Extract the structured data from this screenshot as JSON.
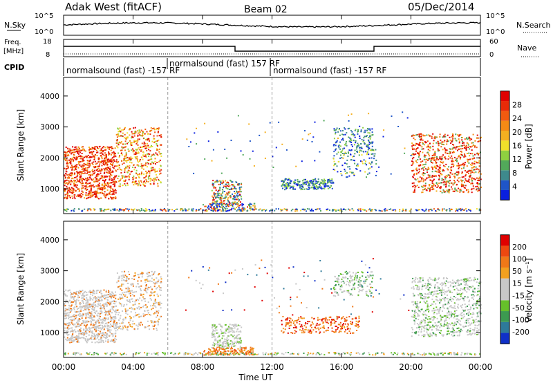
{
  "header": {
    "site": "Adak West (fitACF)",
    "beam": "Beam 02",
    "date": "05/Dec/2014"
  },
  "strips": {
    "nsky_label": "N.Sky",
    "nsky_ticks": [
      "10^5",
      "10^0"
    ],
    "nsearch_label": "N.Search",
    "nsearch_ticks": [
      "10^5",
      "10^0"
    ],
    "freq_label_1": "Freq.",
    "freq_label_2": "[MHz]",
    "freq_ticks": [
      "18",
      "8"
    ],
    "nave_label": "Nave",
    "nave_ticks": [
      "60",
      "0"
    ],
    "cpid_label": "CPID",
    "cpid_segments": [
      {
        "text": "normalsound (fast) -157 RF"
      },
      {
        "text": "normalsound (fast) 157 RF"
      },
      {
        "text": "normalsound (fast) -157 RF"
      }
    ]
  },
  "chart_data": [
    {
      "type": "heatmap",
      "name": "power",
      "ylabel": "Slant Range [km]",
      "ylim": [
        200,
        4600
      ],
      "yticks": [
        "1000",
        "2000",
        "3000",
        "4000"
      ],
      "xlim_hours": [
        0,
        24
      ],
      "colorbar": {
        "label": "Power [dB]",
        "ticks": [
          "4",
          "8",
          "12",
          "16",
          "20",
          "24",
          "28"
        ],
        "colors": [
          "#0a1fe0",
          "#1f55c8",
          "#3e8a8c",
          "#52a85a",
          "#8fd040",
          "#f0e02a",
          "#f5b020",
          "#f58a15",
          "#f05a10",
          "#e82a08",
          "#e00000"
        ]
      }
    },
    {
      "type": "heatmap",
      "name": "velocity",
      "ylabel": "Slant Range [km]",
      "ylim": [
        200,
        4600
      ],
      "yticks": [
        "1000",
        "2000",
        "3000",
        "4000"
      ],
      "xlim_hours": [
        0,
        24
      ],
      "colorbar": {
        "label": "Velocity [m s⁻¹]",
        "ticks": [
          "200",
          "100",
          "50",
          "15",
          "-15",
          "-50",
          "-100",
          "-200"
        ],
        "colors": [
          "#1030c8",
          "#2e7a9a",
          "#3c9a50",
          "#66c02a",
          "#c8c8c8",
          "#c8c8c8",
          "#f2a020",
          "#f07818",
          "#ee4810",
          "#e00000"
        ]
      }
    }
  ],
  "xaxis": {
    "ticks": [
      "00:00",
      "04:00",
      "08:00",
      "12:00",
      "16:00",
      "20:00",
      "00:00"
    ],
    "label": "Time UT"
  }
}
